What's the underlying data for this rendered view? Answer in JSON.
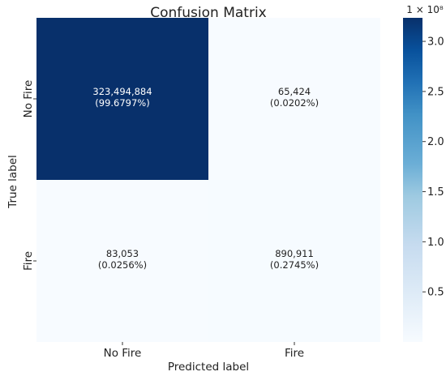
{
  "chart_data": {
    "type": "heatmap",
    "title": "Confusion Matrix",
    "xlabel": "Predicted label",
    "ylabel": "True label",
    "x_categories": [
      "No Fire",
      "Fire"
    ],
    "y_categories": [
      "No Fire",
      "Fire"
    ],
    "values": [
      [
        323494884,
        65424
      ],
      [
        83053,
        890911
      ]
    ],
    "cell_text": [
      [
        "323,494,884",
        "65,424"
      ],
      [
        "83,053",
        "890,911"
      ]
    ],
    "cell_percent": [
      [
        "(99.6797%)",
        "(0.0202%)"
      ],
      [
        "(0.0256%)",
        "(0.2745%)"
      ]
    ],
    "colorbar": {
      "multiplier": "1 × 10⁸",
      "ticks": [
        0.5,
        1.0,
        1.5,
        2.0,
        2.5,
        3.0
      ],
      "tick_labels": [
        "0.5",
        "1.0",
        "1.5",
        "2.0",
        "2.5",
        "3.0"
      ],
      "range": [
        0,
        3.23494884
      ],
      "colormap": "Blues",
      "low_color": "#f7fbff",
      "high_color": "#08306b"
    },
    "grid": false
  }
}
